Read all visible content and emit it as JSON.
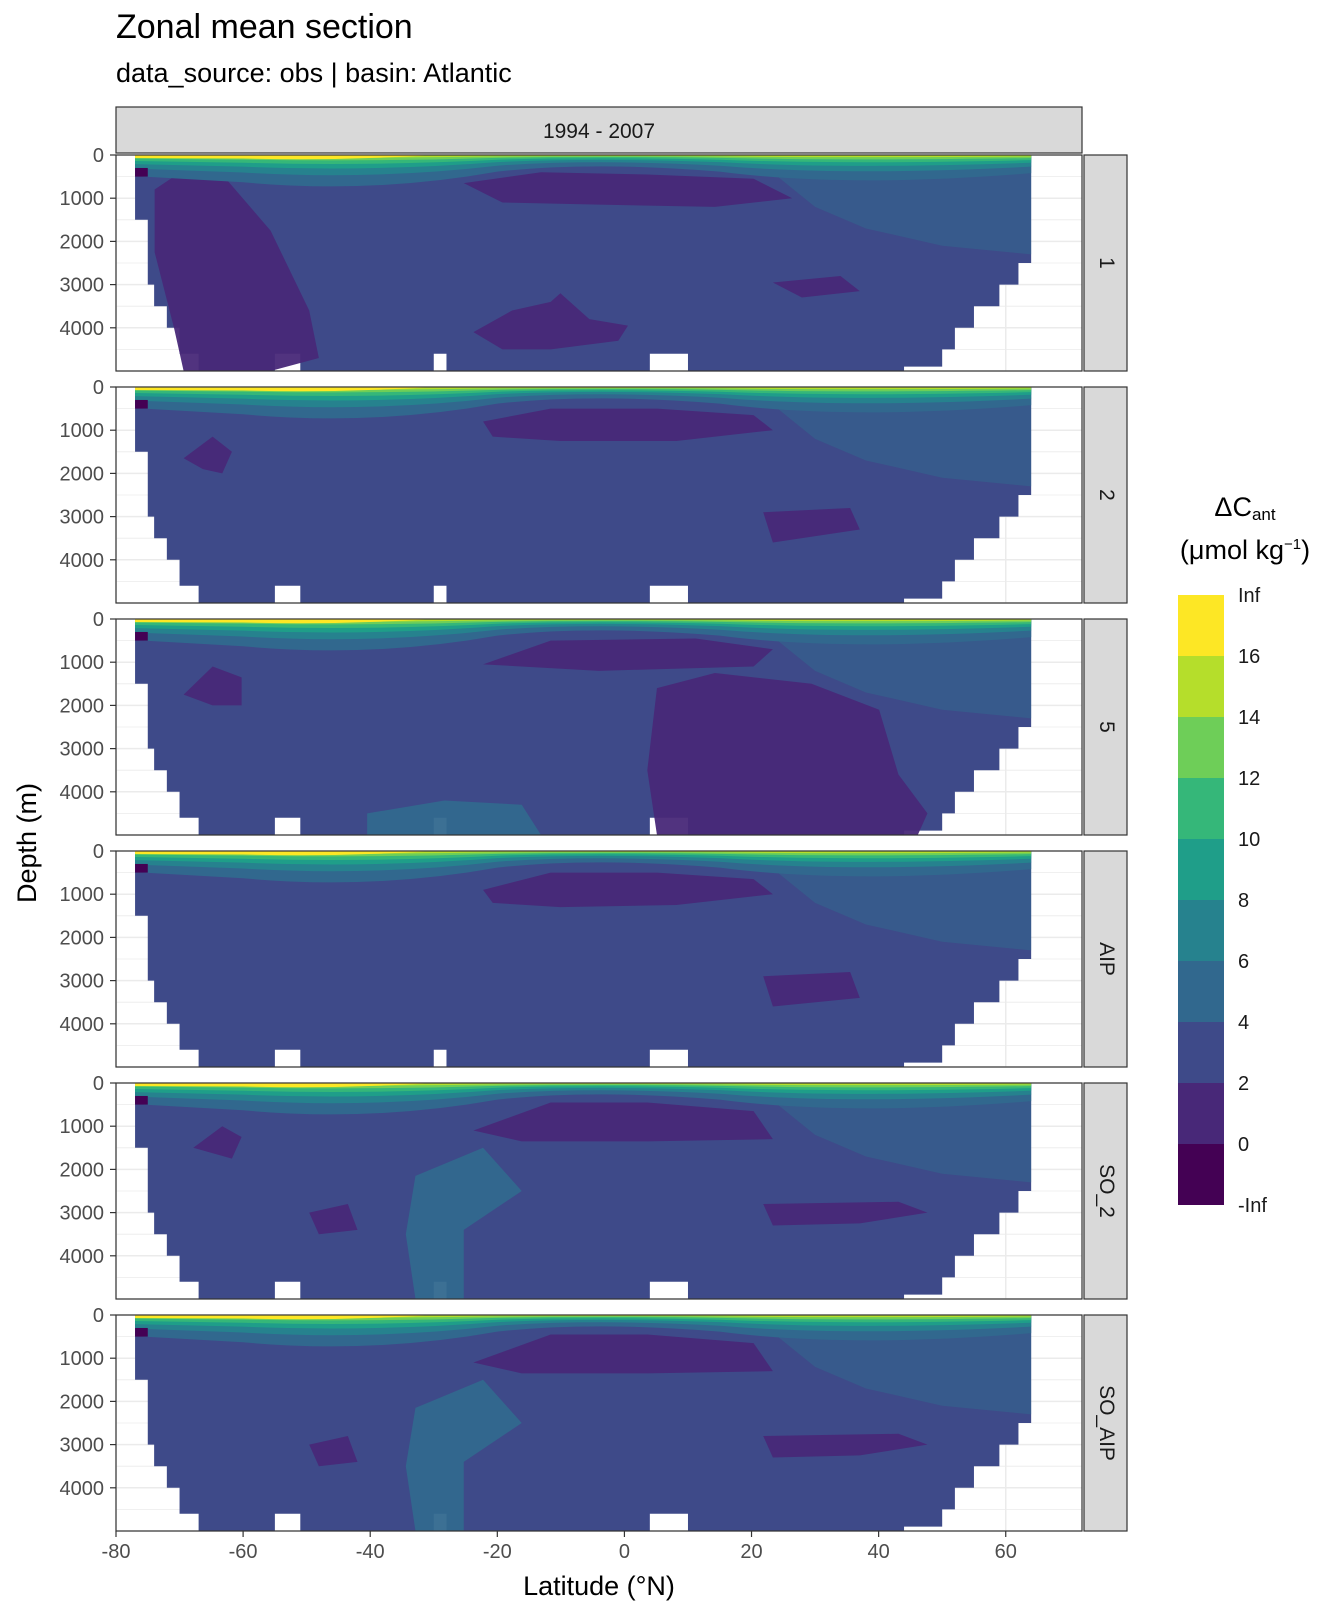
{
  "header": {
    "title": "Zonal mean section",
    "subtitle": "data_source:  obs | basin: Atlantic"
  },
  "chart_data": {
    "type": "heatmap",
    "title": "Zonal mean section",
    "subtitle": "data_source:  obs | basin: Atlantic",
    "column_strip": "1994 - 2007",
    "xlabel": "Latitude (°N)",
    "ylabel": "Depth (m)",
    "xlim": [
      -80,
      72
    ],
    "xticks": [
      -80,
      -60,
      -40,
      -20,
      0,
      20,
      40,
      60
    ],
    "ylim": [
      5000,
      0
    ],
    "yticks": [
      0,
      1000,
      2000,
      3000,
      4000
    ],
    "x_reversed": false,
    "y_reversed": true,
    "legend": {
      "title_main": "ΔC",
      "title_sub": "ant",
      "unit_prefix": "(μmol kg",
      "unit_sup": "−1",
      "unit_suffix": ")",
      "position": "right",
      "bin_labels": [
        "Inf",
        "16",
        "14",
        "12",
        "10",
        "8",
        "6",
        "4",
        "2",
        "0",
        "-Inf"
      ],
      "bin_colors": [
        "#FDE725",
        "#B5DE2B",
        "#6ECE58",
        "#35B779",
        "#1F9E89",
        "#26828E",
        "#31688E",
        "#3E4A89",
        "#482878",
        "#440154"
      ]
    },
    "panels": [
      {
        "label": "1",
        "ocean_color": "#3E4A89"
      },
      {
        "label": "2",
        "ocean_color": "#3E4A89"
      },
      {
        "label": "5",
        "ocean_color": "#3E4A89"
      },
      {
        "label": "AIP",
        "ocean_color": "#3E4A89"
      },
      {
        "label": "SO_2",
        "ocean_color": "#3E4A89"
      },
      {
        "label": "SO_AIP",
        "ocean_color": "#3E4A89"
      }
    ],
    "grid": true
  }
}
